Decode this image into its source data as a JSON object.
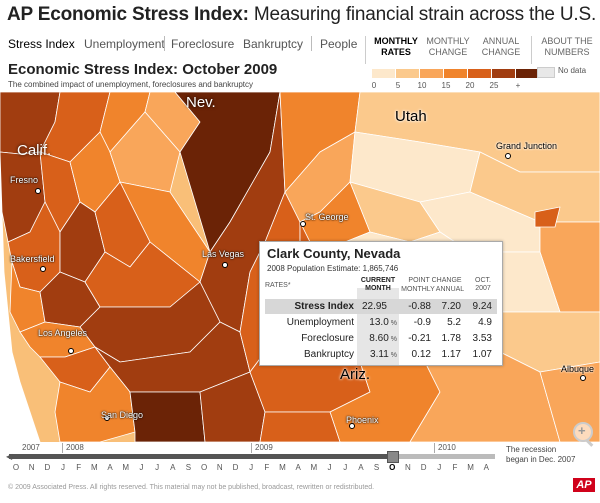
{
  "header": {
    "brand": "AP Economic Stress Index:",
    "subtitle": "Measuring financial strain across the U.S."
  },
  "tabs": [
    {
      "label": "Stress Index",
      "active": true
    },
    {
      "label": "Unemployment",
      "active": false
    },
    {
      "label": "Foreclosure",
      "active": false
    },
    {
      "label": "Bankruptcy",
      "active": false
    },
    {
      "label": "People",
      "active": false
    }
  ],
  "modes": [
    {
      "line1": "MONTHLY",
      "line2": "RATES",
      "active": true
    },
    {
      "line1": "MONTHLY",
      "line2": "CHANGE",
      "active": false
    },
    {
      "line1": "ANNUAL",
      "line2": "CHANGE",
      "active": false
    }
  ],
  "about": {
    "line1": "ABOUT THE",
    "line2": "NUMBERS"
  },
  "legend": {
    "colors": [
      "#fde8cb",
      "#fbc98c",
      "#f9a65a",
      "#f0842c",
      "#d8601a",
      "#a13d10",
      "#6b2306"
    ],
    "labels": [
      "0",
      "5",
      "10",
      "15",
      "20",
      "25",
      "+"
    ],
    "no_data": "No data",
    "no_data_color": "#e8e8e8"
  },
  "map": {
    "title": "Economic Stress Index: October 2009",
    "subtitle": "The combined impact of unemployment, foreclosures and bankruptcy",
    "states": {
      "nevada": "Nev.",
      "utah": "Utah",
      "california": "Calif.",
      "arizona": "Ariz."
    },
    "cities": {
      "fresno": "Fresno",
      "bakersfield": "Bakersfield",
      "los_angeles": "Los Angeles",
      "san_diego": "San Diego",
      "las_vegas": "Las Vegas",
      "st_george": "St. George",
      "grand_junction": "Grand Junction",
      "phoenix": "Phoenix",
      "albuquerque": "Albuque"
    }
  },
  "popup": {
    "county": "Clark County, Nevada",
    "population_label": "2008 Population Estimate:",
    "population": "1,865,746",
    "rates_label": "RATES*",
    "current_label1": "CURRENT",
    "current_label2": "MONTH",
    "point_change_label": "POINT CHANGE",
    "monthly_label": "MONTHLY",
    "annual_label": "ANNUAL",
    "oct_label1": "OCT.",
    "oct_label2": "2007",
    "pct_sign": "%",
    "rows": [
      {
        "label": "Stress Index",
        "current": "22.95",
        "monthly": "-0.88",
        "annual": "7.20",
        "oct2007": "9.24",
        "has_pct": false
      },
      {
        "label": "Unemployment",
        "current": "13.0",
        "monthly": "-0.9",
        "annual": "5.2",
        "oct2007": "4.9",
        "has_pct": true
      },
      {
        "label": "Foreclosure",
        "current": "8.60",
        "monthly": "-0.21",
        "annual": "1.78",
        "oct2007": "3.53",
        "has_pct": true
      },
      {
        "label": "Bankruptcy",
        "current": "3.11",
        "monthly": "0.12",
        "annual": "1.17",
        "oct2007": "1.07",
        "has_pct": true
      }
    ]
  },
  "timeline": {
    "years": [
      "2007",
      "2008",
      "2009",
      "2010"
    ],
    "months": [
      "O",
      "N",
      "D",
      "J",
      "F",
      "M",
      "A",
      "M",
      "J",
      "J",
      "A",
      "S",
      "O",
      "N",
      "D",
      "J",
      "F",
      "M",
      "A",
      "M",
      "J",
      "J",
      "A",
      "S",
      "O",
      "N",
      "D",
      "J",
      "F",
      "M",
      "A"
    ],
    "selected_month_index": 24,
    "recession_line1": "The recession",
    "recession_line2": "began in Dec. 2007"
  },
  "footer": {
    "copyright": "© 2009 Associated Press. All rights reserved. This material may not be published, broadcast, rewritten or redistributed.",
    "logo": "AP"
  }
}
